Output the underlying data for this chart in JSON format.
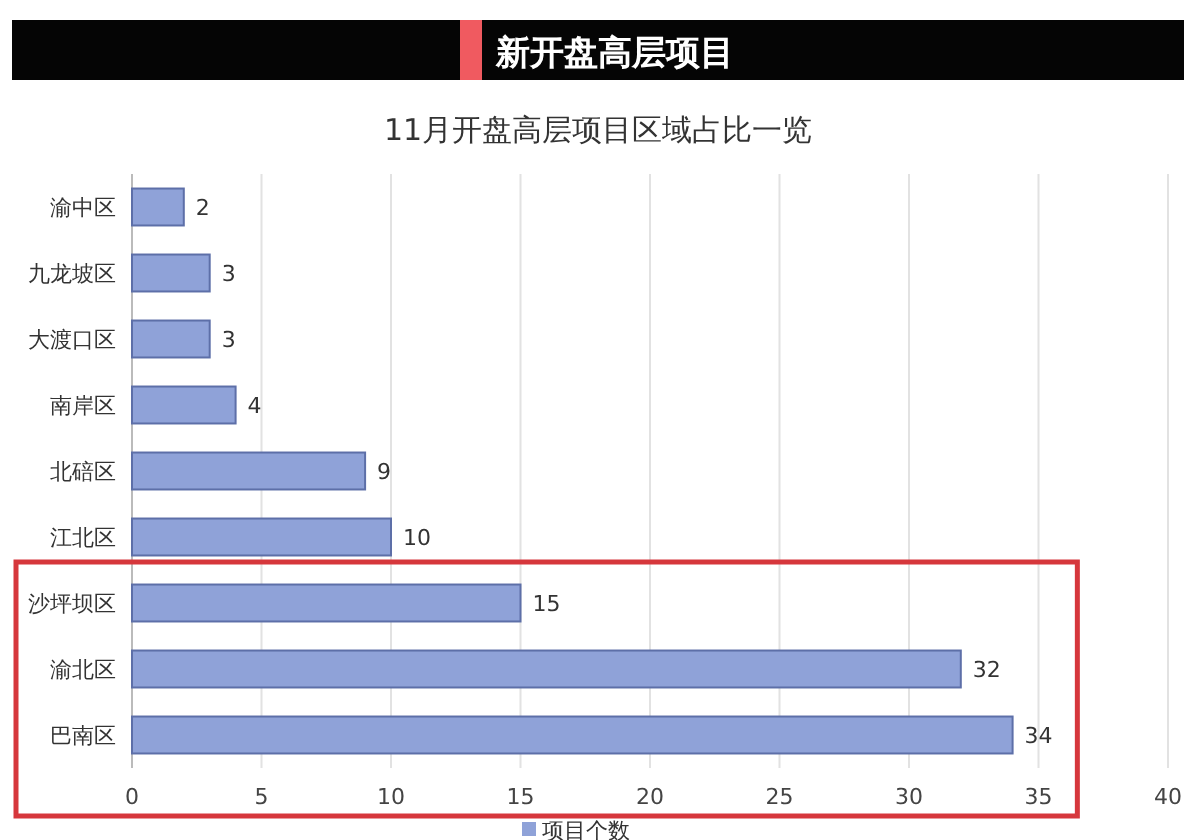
{
  "chart_data": {
    "type": "bar",
    "orientation": "horizontal",
    "title": "新开盘高层项目",
    "subtitle": "11月开盘高层项目区域占比一览",
    "categories": [
      "渝中区",
      "九龙坡区",
      "大渡口区",
      "南岸区",
      "北碚区",
      "江北区",
      "沙坪坝区",
      "渝北区",
      "巴南区"
    ],
    "series": [
      {
        "name": "项目个数",
        "color": "#8fa2d8",
        "values": [
          2,
          3,
          3,
          4,
          9,
          10,
          15,
          32,
          34
        ]
      }
    ],
    "xlim": [
      0,
      40
    ],
    "xticks": [
      0,
      5,
      10,
      15,
      20,
      25,
      30,
      35,
      40
    ],
    "grid": "x",
    "legend": "bottom",
    "data_labels": true
  }
}
